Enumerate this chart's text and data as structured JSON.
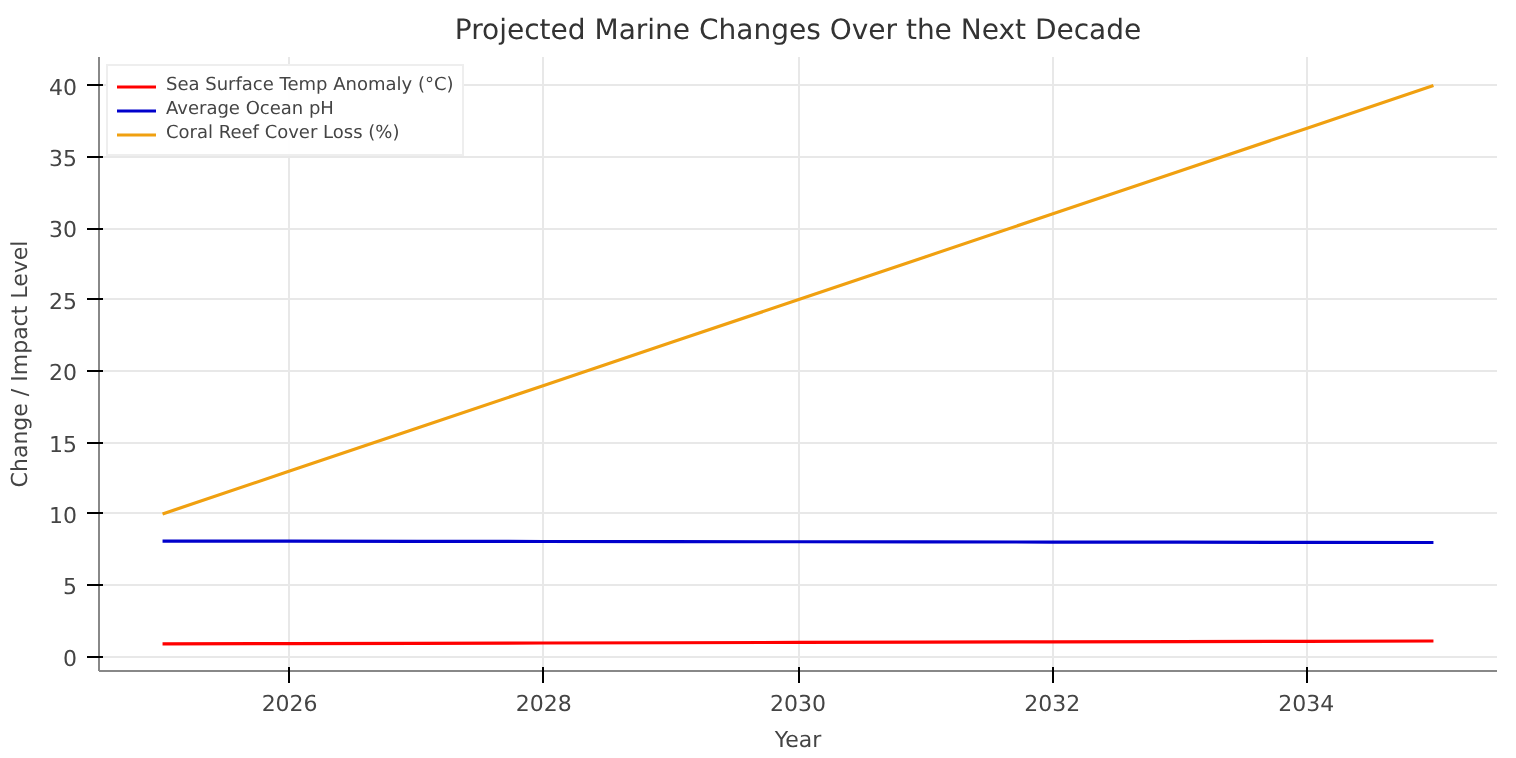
{
  "chart_data": {
    "type": "line",
    "title": "Projected Marine Changes Over the Next Decade",
    "xlabel": "Year",
    "ylabel": "Change / Impact Level",
    "x": [
      2025,
      2026,
      2027,
      2028,
      2029,
      2030,
      2031,
      2032,
      2033,
      2034,
      2035
    ],
    "series": [
      {
        "name": "Sea Surface Temp Anomaly (°C)",
        "color": "#ff0000",
        "values": [
          0.9,
          0.92,
          0.94,
          0.96,
          0.98,
          1.0,
          1.02,
          1.04,
          1.06,
          1.08,
          1.1
        ]
      },
      {
        "name": "Average Ocean pH",
        "color": "#0000cc",
        "values": [
          8.1,
          8.09,
          8.08,
          8.07,
          8.06,
          8.05,
          8.04,
          8.03,
          8.02,
          8.01,
          8.0
        ]
      },
      {
        "name": "Coral Reef Cover Loss (%)",
        "color": "#f0a010",
        "values": [
          10,
          13,
          16,
          19,
          22,
          25,
          28,
          31,
          34,
          37,
          40
        ]
      }
    ],
    "xlim": [
      2024.5,
      2035.5
    ],
    "xticks": [
      2026,
      2028,
      2030,
      2032,
      2034
    ],
    "ylim": [
      -1,
      42
    ],
    "yticks": [
      0,
      5,
      10,
      15,
      20,
      25,
      30,
      35,
      40
    ],
    "grid": true,
    "legend": "top left",
    "line_style": "solid"
  }
}
